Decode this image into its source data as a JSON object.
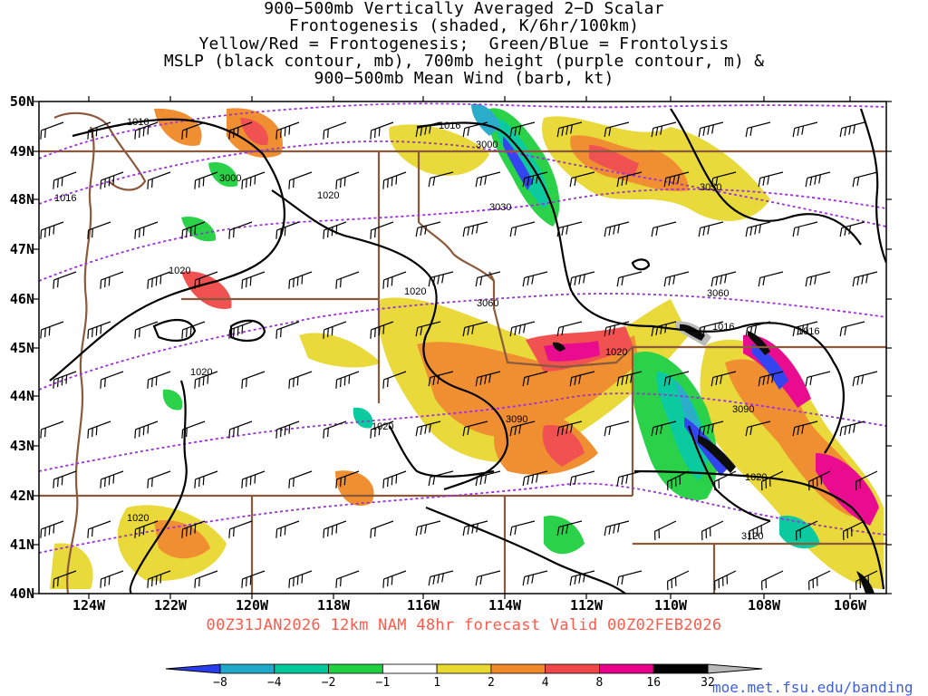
{
  "title": {
    "lines": [
      "900−500mb Vertically Averaged 2−D Scalar",
      "Frontogenesis (shaded, K/6hr/100km)",
      "Yellow/Red = Frontogenesis;  Green/Blue = Frontolysis",
      "MSLP (black contour, mb), 700mb height (purple contour, m) &",
      "900−500mb Mean Wind (barb, kt)"
    ]
  },
  "axes": {
    "lat_labels": [
      "50N",
      "49N",
      "48N",
      "47N",
      "46N",
      "45N",
      "44N",
      "43N",
      "42N",
      "41N",
      "40N"
    ],
    "lon_labels": [
      "124W",
      "122W",
      "120W",
      "118W",
      "116W",
      "114W",
      "112W",
      "110W",
      "108W",
      "106W"
    ],
    "lat_range": [
      40,
      50
    ],
    "lon_range": [
      -125.2,
      -104.9
    ]
  },
  "footer": "00Z31JAN2026 12km NAM 48hr forecast Valid 00Z02FEB2026",
  "colorbar": {
    "labels": [
      "−8",
      "−4",
      "−2",
      "−1",
      "1",
      "2",
      "4",
      "8",
      "16",
      "32"
    ],
    "colors": [
      "#2a3cf0",
      "#1fa8c8",
      "#00c89a",
      "#20d040",
      "#ffffff",
      "#e8d830",
      "#f08a28",
      "#f04848",
      "#e8008a",
      "#000000",
      "#b8b8b8"
    ]
  },
  "mslp_contour_labels": [
    "1016",
    "1016",
    "1016",
    "1020",
    "1020",
    "1020",
    "1020",
    "1020",
    "1020",
    "1020",
    "1016",
    "1016",
    "1020"
  ],
  "height_contour_labels": [
    "3000",
    "3000",
    "3030",
    "3030",
    "3060",
    "3060",
    "3090",
    "3090",
    "3120"
  ],
  "credit": "moe.met.fsu.edu/banding",
  "colors": {
    "border": "#8b5a3c",
    "mslp": "#000000",
    "height": "#9b30d8",
    "footer": "#ff5a4a",
    "credit": "#3d5fe0"
  }
}
